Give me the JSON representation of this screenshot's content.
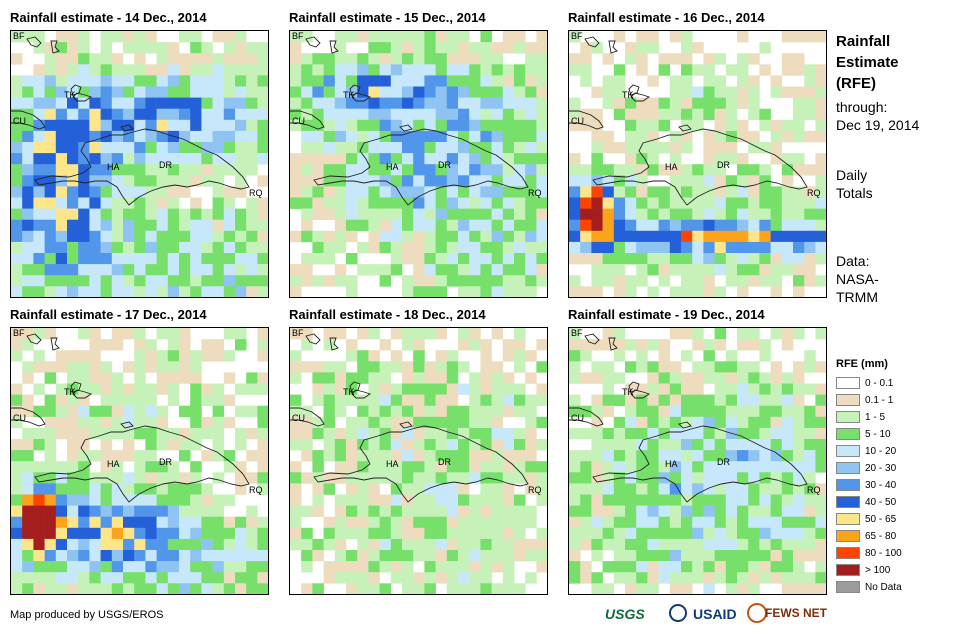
{
  "panels": [
    {
      "title": "Rainfall estimate - 14 Dec., 2014"
    },
    {
      "title": "Rainfall estimate - 15 Dec., 2014"
    },
    {
      "title": "Rainfall estimate - 16 Dec., 2014"
    },
    {
      "title": "Rainfall estimate - 17 Dec., 2014"
    },
    {
      "title": "Rainfall estimate - 18 Dec., 2014"
    },
    {
      "title": "Rainfall estimate - 19 Dec., 2014"
    }
  ],
  "map_labels": {
    "bf": "BF",
    "tk": "TK",
    "cu": "CU",
    "ha": "HA",
    "dr": "DR",
    "rq": "RQ"
  },
  "side": {
    "title": [
      "Rainfall",
      "Estimate",
      "(RFE)"
    ],
    "through": "through:",
    "date": "Dec 19, 2014",
    "period": [
      "Daily",
      "Totals"
    ],
    "source": [
      "Data:",
      "NASA-",
      "TRMM"
    ]
  },
  "legend": {
    "title": "RFE (mm)",
    "items": [
      {
        "label": "0 - 0.1",
        "color": "#ffffff"
      },
      {
        "label": "0.1 - 1",
        "color": "#eedcbe"
      },
      {
        "label": "1 - 5",
        "color": "#c6f2ba"
      },
      {
        "label": "5 - 10",
        "color": "#77e06a"
      },
      {
        "label": "10 - 20",
        "color": "#c6e8fa"
      },
      {
        "label": "20 - 30",
        "color": "#8fc4f2"
      },
      {
        "label": "30 - 40",
        "color": "#5196ea"
      },
      {
        "label": "40 - 50",
        "color": "#2460d8"
      },
      {
        "label": "50 - 65",
        "color": "#fde68a"
      },
      {
        "label": "65 - 80",
        "color": "#fba31b"
      },
      {
        "label": "80 - 100",
        "color": "#ff4400"
      },
      {
        "label": "> 100",
        "color": "#a51e1e"
      },
      {
        "label": "No Data",
        "color": "#9b9b9b"
      }
    ]
  },
  "credit": "Map produced by USGS/EROS",
  "logos": {
    "usgs": "USGS",
    "usaid": "USAID",
    "fews": "FEWS NET"
  }
}
